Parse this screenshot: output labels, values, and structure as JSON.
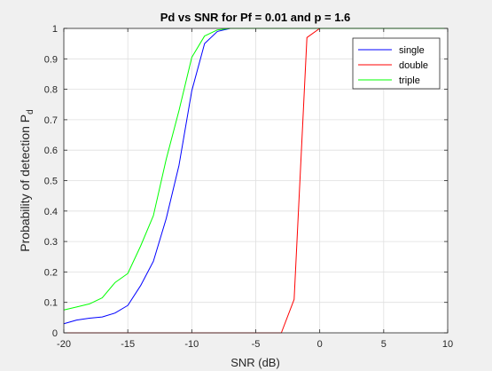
{
  "chart_data": {
    "type": "line",
    "title": "Pd vs SNR for Pf = 0.01 and p = 1.6",
    "xlabel": "SNR (dB)",
    "ylabel": "Probability of detection P",
    "ylabel_subscript": "d",
    "xlim": [
      -20,
      10
    ],
    "ylim": [
      0,
      1
    ],
    "xticks": [
      -20,
      -15,
      -10,
      -5,
      0,
      5,
      10
    ],
    "yticks": [
      0,
      0.1,
      0.2,
      0.3,
      0.4,
      0.5,
      0.6,
      0.7,
      0.8,
      0.9,
      1
    ],
    "grid": true,
    "legend_position": "top-right",
    "series": [
      {
        "name": "single",
        "color": "#0000ff",
        "x": [
          -20,
          -19,
          -18,
          -17,
          -16,
          -15,
          -14,
          -13,
          -12,
          -11,
          -10,
          -9,
          -8,
          -7,
          -6,
          -5,
          -4,
          -3,
          -2,
          -1,
          0,
          1,
          2,
          3,
          4,
          5,
          6,
          7,
          8,
          9,
          10
        ],
        "y": [
          0.03,
          0.042,
          0.048,
          0.052,
          0.065,
          0.09,
          0.155,
          0.235,
          0.375,
          0.55,
          0.795,
          0.95,
          0.99,
          1,
          1,
          1,
          1,
          1,
          1,
          1,
          1,
          1,
          1,
          1,
          1,
          1,
          1,
          1,
          1,
          1,
          1
        ]
      },
      {
        "name": "double",
        "color": "#ff0000",
        "x": [
          -20,
          -19,
          -18,
          -17,
          -16,
          -15,
          -14,
          -13,
          -12,
          -11,
          -10,
          -9,
          -8,
          -7,
          -6,
          -5,
          -4,
          -3,
          -2,
          -1,
          0,
          1,
          2,
          3,
          4,
          5,
          6,
          7,
          8,
          9,
          10
        ],
        "y": [
          0,
          0,
          0,
          0,
          0,
          0,
          0,
          0,
          0,
          0,
          0,
          0,
          0,
          0,
          0,
          0,
          0,
          0,
          0.11,
          0.97,
          1,
          1,
          1,
          1,
          1,
          1,
          1,
          1,
          1,
          1,
          1
        ]
      },
      {
        "name": "triple",
        "color": "#00ff00",
        "x": [
          -20,
          -19,
          -18,
          -17,
          -16,
          -15,
          -14,
          -13,
          -12,
          -11,
          -10,
          -9,
          -8,
          -7,
          -6,
          -5,
          -4,
          -3,
          -2,
          -1,
          0,
          1,
          2,
          3,
          4,
          5,
          6,
          7,
          8,
          9,
          10
        ],
        "y": [
          0.075,
          0.085,
          0.095,
          0.115,
          0.165,
          0.195,
          0.285,
          0.385,
          0.57,
          0.73,
          0.905,
          0.975,
          0.995,
          1,
          1,
          1,
          1,
          1,
          1,
          1,
          1,
          1,
          1,
          1,
          1,
          1,
          1,
          1,
          1,
          1,
          1
        ]
      }
    ]
  }
}
